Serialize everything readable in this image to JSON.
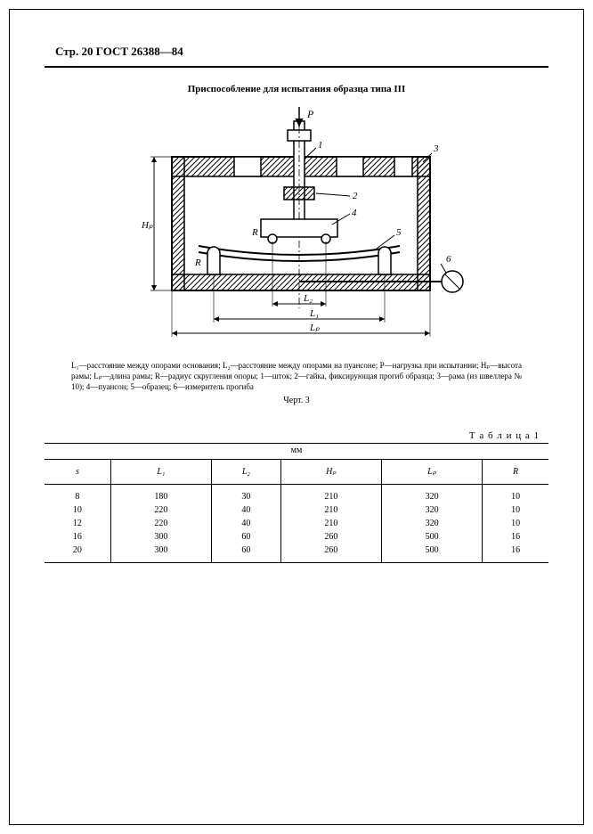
{
  "header": {
    "page": "Стр. 20",
    "standard": "ГОСТ 26388—84"
  },
  "figure": {
    "title": "Приспособление для испытания образца типа III",
    "caption": "L₁—расстояние между опорами основания; L₂—расстояние между опорами на пуансоне; P—нагрузка при испытании; Hₚ—высота рамы; Lₚ—длина рамы; R—радиус скругления опоры; 1—шток; 2—гайка, фиксирующая прогиб образца; 3—рама (из швеллера № 10); 4—пуансон; 5—образец; 6—измеритель прогиба",
    "number": "Черт. 3",
    "labels": {
      "P": "P",
      "n1": "1",
      "n2": "2",
      "n3": "3",
      "n4": "4",
      "n5": "5",
      "n6": "6",
      "R1": "R",
      "R2": "R",
      "Hp": "Hₚ",
      "L1": "L₁",
      "L2": "L₂",
      "Lp": "Lₚ"
    },
    "style": {
      "stroke": "#000000",
      "stroke_thick": 2,
      "stroke_thin": 1,
      "hatch_spacing": 5,
      "background": "#ffffff"
    }
  },
  "table": {
    "label": "Т а б л и ц а 1",
    "unit": "мм",
    "columns": [
      "s",
      "L₁",
      "L₂",
      "Hₚ",
      "Lₚ",
      "R"
    ],
    "rows": [
      [
        "8",
        "180",
        "30",
        "210",
        "320",
        "10"
      ],
      [
        "10",
        "220",
        "40",
        "210",
        "320",
        "10"
      ],
      [
        "12",
        "220",
        "40",
        "210",
        "320",
        "10"
      ],
      [
        "16",
        "300",
        "60",
        "260",
        "500",
        "16"
      ],
      [
        "20",
        "300",
        "60",
        "260",
        "500",
        "16"
      ]
    ]
  }
}
